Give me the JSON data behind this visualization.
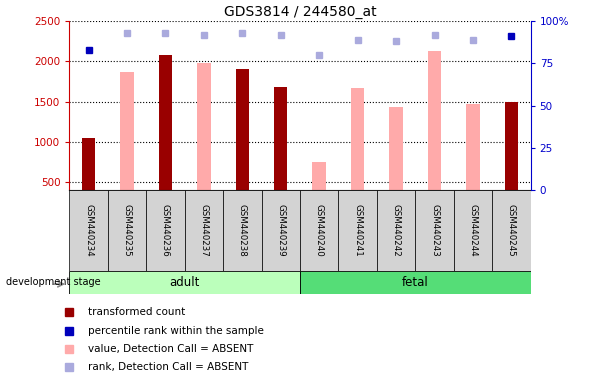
{
  "title": "GDS3814 / 244580_at",
  "samples": [
    "GSM440234",
    "GSM440235",
    "GSM440236",
    "GSM440237",
    "GSM440238",
    "GSM440239",
    "GSM440240",
    "GSM440241",
    "GSM440242",
    "GSM440243",
    "GSM440244",
    "GSM440245"
  ],
  "groups": [
    {
      "label": "adult",
      "start": 0,
      "end": 6,
      "color": "#bbffbb"
    },
    {
      "label": "fetal",
      "start": 6,
      "end": 12,
      "color": "#55dd77"
    }
  ],
  "bar_values": [
    1050,
    1870,
    2080,
    1980,
    1910,
    1680,
    750,
    1665,
    1430,
    2130,
    1475,
    1500
  ],
  "bar_colors": [
    "#990000",
    "#ffaaaa",
    "#990000",
    "#ffaaaa",
    "#990000",
    "#990000",
    "#ffaaaa",
    "#ffaaaa",
    "#ffaaaa",
    "#ffaaaa",
    "#ffaaaa",
    "#990000"
  ],
  "rank_values": [
    83,
    93,
    93,
    92,
    93,
    92,
    80,
    89,
    88,
    92,
    89,
    91
  ],
  "rank_marker_colors": [
    "#0000bb",
    "#aaaadd",
    "#aaaadd",
    "#aaaadd",
    "#aaaadd",
    "#aaaadd",
    "#aaaadd",
    "#aaaadd",
    "#aaaadd",
    "#aaaadd",
    "#aaaadd",
    "#0000bb"
  ],
  "ylim_left": [
    400,
    2500
  ],
  "ylim_right": [
    0,
    100
  ],
  "yticks_left": [
    500,
    1000,
    1500,
    2000,
    2500
  ],
  "yticks_right": [
    0,
    25,
    50,
    75,
    100
  ],
  "yticklabels_right": [
    "0",
    "25",
    "50",
    "75",
    "100%"
  ],
  "legend_items": [
    {
      "label": "transformed count",
      "color": "#990000"
    },
    {
      "label": "percentile rank within the sample",
      "color": "#0000bb"
    },
    {
      "label": "value, Detection Call = ABSENT",
      "color": "#ffaaaa"
    },
    {
      "label": "rank, Detection Call = ABSENT",
      "color": "#aaaadd"
    }
  ],
  "background_color": "#ffffff",
  "bar_width": 0.35
}
